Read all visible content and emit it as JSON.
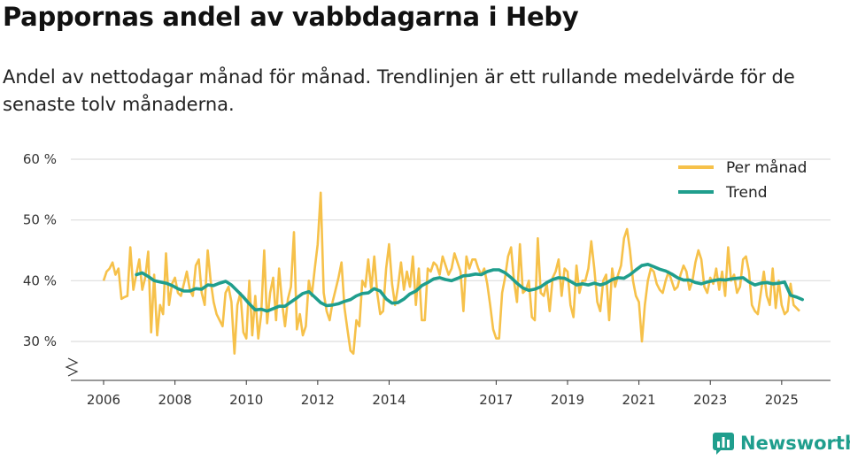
{
  "header": {
    "title": "Pappornas andel av vabbdagarna i Heby",
    "subtitle": "Andel av nettodagar månad för månad. Trendlinjen är ett rullande medelvärde för de senaste tolv månaderna."
  },
  "brand": {
    "name": "Newsworthy",
    "icon": "bar-chart-icon",
    "color": "#1f9e8d"
  },
  "chart_data": {
    "type": "line",
    "x_range": [
      2006.0,
      2025.5
    ],
    "ylim": [
      25,
      60
    ],
    "y_ticks": [
      {
        "value": 30,
        "label": "30 %"
      },
      {
        "value": 40,
        "label": "40 %"
      },
      {
        "value": 50,
        "label": "50 %"
      },
      {
        "value": 60,
        "label": "60 %"
      }
    ],
    "x_ticks": [
      {
        "value": 2006,
        "label": "2006"
      },
      {
        "value": 2008,
        "label": "2008"
      },
      {
        "value": 2010,
        "label": "2010"
      },
      {
        "value": 2012,
        "label": "2012"
      },
      {
        "value": 2014,
        "label": "2014"
      },
      {
        "value": 2017,
        "label": "2017"
      },
      {
        "value": 2019,
        "label": "2019"
      },
      {
        "value": 2021,
        "label": "2021"
      },
      {
        "value": 2023,
        "label": "2023"
      },
      {
        "value": 2025,
        "label": "2025"
      }
    ],
    "axis_break": true,
    "grid": true,
    "legend_position": "top-right",
    "series": [
      {
        "name": "Per månad",
        "color": "#f6c14a",
        "x_start": 2006.0,
        "step": 0.08333,
        "values": [
          40.0,
          41.5,
          42.0,
          43.0,
          41.0,
          42.0,
          37.0,
          37.3,
          37.5,
          45.5,
          38.5,
          41.0,
          43.5,
          38.5,
          40.5,
          44.8,
          31.5,
          41.0,
          31.0,
          36.0,
          34.5,
          44.5,
          36.0,
          39.5,
          40.5,
          38.0,
          37.5,
          39.5,
          41.5,
          38.5,
          37.5,
          42.5,
          43.5,
          38.0,
          36.0,
          45.0,
          40.0,
          36.5,
          34.5,
          33.5,
          32.5,
          38.0,
          39.0,
          36.5,
          28.0,
          36.0,
          38.0,
          31.5,
          30.5,
          40.0,
          31.0,
          37.5,
          30.5,
          34.5,
          45.0,
          33.0,
          38.0,
          40.5,
          33.5,
          42.0,
          36.5,
          32.5,
          37.0,
          39.0,
          48.0,
          32.0,
          34.5,
          31.0,
          32.5,
          40.0,
          37.5,
          42.0,
          46.0,
          54.5,
          38.0,
          35.0,
          33.5,
          36.5,
          38.5,
          40.5,
          43.0,
          35.5,
          32.0,
          28.5,
          28.0,
          33.5,
          32.5,
          40.0,
          39.0,
          43.5,
          38.5,
          44.0,
          38.0,
          34.5,
          35.0,
          42.0,
          46.0,
          39.5,
          36.0,
          39.0,
          43.0,
          38.5,
          41.5,
          39.0,
          44.0,
          36.0,
          42.0,
          33.5,
          33.5,
          42.0,
          41.5,
          43.0,
          42.5,
          41.0,
          44.0,
          42.5,
          41.0,
          42.0,
          44.5,
          43.0,
          41.5,
          35.0,
          44.0,
          42.0,
          43.5,
          43.5,
          42.0,
          41.0,
          42.0,
          39.5,
          36.0,
          32.0,
          30.5,
          30.5,
          38.0,
          40.5,
          44.0,
          45.5,
          40.0,
          36.5,
          46.0,
          38.0,
          38.5,
          40.0,
          34.0,
          33.5,
          47.0,
          38.0,
          37.5,
          39.5,
          35.0,
          40.5,
          41.5,
          43.5,
          37.5,
          42.0,
          41.5,
          36.0,
          34.0,
          42.5,
          38.0,
          40.0,
          40.0,
          42.0,
          46.5,
          42.0,
          36.5,
          35.0,
          40.0,
          41.0,
          33.5,
          42.0,
          39.0,
          41.0,
          42.5,
          47.0,
          48.5,
          45.0,
          40.0,
          37.5,
          36.5,
          30.0,
          36.0,
          40.0,
          42.0,
          41.5,
          39.5,
          38.5,
          38.0,
          40.0,
          41.5,
          40.0,
          38.5,
          39.0,
          41.0,
          42.5,
          41.5,
          38.5,
          40.0,
          43.0,
          45.0,
          43.5,
          39.0,
          38.0,
          40.5,
          39.5,
          42.0,
          38.5,
          41.5,
          37.5,
          45.5,
          40.0,
          41.0,
          38.0,
          39.0,
          43.5,
          44.0,
          41.5,
          36.0,
          35.0,
          34.5,
          38.0,
          41.5,
          37.5,
          36.0,
          42.0,
          35.5,
          40.0,
          36.0,
          34.5,
          35.0,
          39.5,
          36.0,
          35.5,
          35.0
        ]
      },
      {
        "name": "Trend",
        "color": "#1f9e8d",
        "points": [
          [
            2006.92,
            41.0
          ],
          [
            2007.08,
            41.3
          ],
          [
            2007.25,
            40.7
          ],
          [
            2007.42,
            40.0
          ],
          [
            2007.58,
            39.8
          ],
          [
            2007.75,
            39.6
          ],
          [
            2007.92,
            39.2
          ],
          [
            2008.08,
            38.7
          ],
          [
            2008.25,
            38.3
          ],
          [
            2008.42,
            38.3
          ],
          [
            2008.58,
            38.7
          ],
          [
            2008.75,
            38.6
          ],
          [
            2008.92,
            39.3
          ],
          [
            2009.08,
            39.2
          ],
          [
            2009.25,
            39.6
          ],
          [
            2009.42,
            39.9
          ],
          [
            2009.58,
            39.3
          ],
          [
            2009.75,
            38.3
          ],
          [
            2009.92,
            37.3
          ],
          [
            2010.08,
            36.2
          ],
          [
            2010.25,
            35.2
          ],
          [
            2010.42,
            35.3
          ],
          [
            2010.58,
            35.0
          ],
          [
            2010.75,
            35.4
          ],
          [
            2010.92,
            35.8
          ],
          [
            2011.08,
            35.8
          ],
          [
            2011.25,
            36.5
          ],
          [
            2011.42,
            37.2
          ],
          [
            2011.58,
            37.9
          ],
          [
            2011.75,
            38.2
          ],
          [
            2011.92,
            37.3
          ],
          [
            2012.08,
            36.4
          ],
          [
            2012.25,
            35.9
          ],
          [
            2012.42,
            36.0
          ],
          [
            2012.58,
            36.2
          ],
          [
            2012.75,
            36.6
          ],
          [
            2012.92,
            36.9
          ],
          [
            2013.08,
            37.5
          ],
          [
            2013.25,
            37.9
          ],
          [
            2013.42,
            38.0
          ],
          [
            2013.58,
            38.7
          ],
          [
            2013.75,
            38.3
          ],
          [
            2013.92,
            37.0
          ],
          [
            2014.08,
            36.3
          ],
          [
            2014.25,
            36.4
          ],
          [
            2014.42,
            37.0
          ],
          [
            2014.58,
            37.8
          ],
          [
            2014.75,
            38.3
          ],
          [
            2014.92,
            39.2
          ],
          [
            2015.08,
            39.7
          ],
          [
            2015.25,
            40.3
          ],
          [
            2015.42,
            40.5
          ],
          [
            2015.58,
            40.2
          ],
          [
            2015.75,
            40.0
          ],
          [
            2015.92,
            40.4
          ],
          [
            2016.08,
            40.8
          ],
          [
            2016.25,
            40.9
          ],
          [
            2016.42,
            41.1
          ],
          [
            2016.58,
            41.0
          ],
          [
            2016.75,
            41.5
          ],
          [
            2016.92,
            41.8
          ],
          [
            2017.08,
            41.8
          ],
          [
            2017.25,
            41.3
          ],
          [
            2017.42,
            40.5
          ],
          [
            2017.58,
            39.6
          ],
          [
            2017.75,
            38.8
          ],
          [
            2017.92,
            38.4
          ],
          [
            2018.08,
            38.6
          ],
          [
            2018.25,
            39.0
          ],
          [
            2018.42,
            39.7
          ],
          [
            2018.58,
            40.2
          ],
          [
            2018.75,
            40.5
          ],
          [
            2018.92,
            40.4
          ],
          [
            2019.08,
            39.9
          ],
          [
            2019.25,
            39.3
          ],
          [
            2019.42,
            39.5
          ],
          [
            2019.58,
            39.3
          ],
          [
            2019.75,
            39.6
          ],
          [
            2019.92,
            39.3
          ],
          [
            2020.08,
            39.6
          ],
          [
            2020.25,
            40.2
          ],
          [
            2020.42,
            40.5
          ],
          [
            2020.58,
            40.4
          ],
          [
            2020.75,
            41.0
          ],
          [
            2020.92,
            41.8
          ],
          [
            2021.08,
            42.5
          ],
          [
            2021.25,
            42.7
          ],
          [
            2021.42,
            42.3
          ],
          [
            2021.58,
            41.9
          ],
          [
            2021.75,
            41.6
          ],
          [
            2021.92,
            41.1
          ],
          [
            2022.08,
            40.5
          ],
          [
            2022.25,
            40.1
          ],
          [
            2022.42,
            40.1
          ],
          [
            2022.58,
            39.7
          ],
          [
            2022.75,
            39.5
          ],
          [
            2022.92,
            39.8
          ],
          [
            2023.08,
            40.0
          ],
          [
            2023.25,
            40.2
          ],
          [
            2023.42,
            40.1
          ],
          [
            2023.58,
            40.3
          ],
          [
            2023.75,
            40.4
          ],
          [
            2023.92,
            40.5
          ],
          [
            2024.08,
            39.8
          ],
          [
            2024.25,
            39.3
          ],
          [
            2024.42,
            39.6
          ],
          [
            2024.58,
            39.7
          ],
          [
            2024.75,
            39.5
          ],
          [
            2024.92,
            39.6
          ],
          [
            2025.08,
            39.8
          ],
          [
            2025.25,
            37.6
          ],
          [
            2025.42,
            37.3
          ],
          [
            2025.58,
            36.9
          ]
        ]
      }
    ]
  }
}
